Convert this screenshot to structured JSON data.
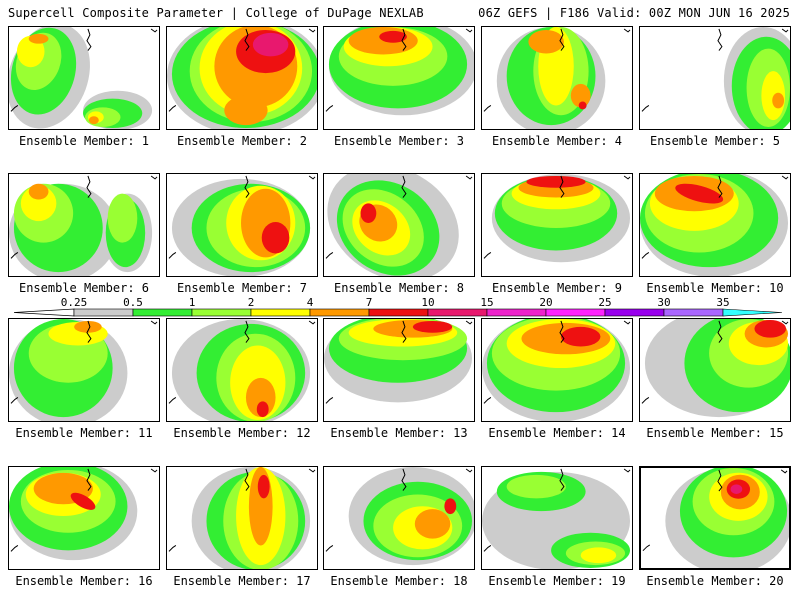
{
  "header": {
    "title": "Supercell Composite Parameter | College of DuPage NEXLAB",
    "model_info": "06Z GEFS | F186 Valid: 00Z MON JUN 16 2025"
  },
  "colorbar": {
    "thresholds": [
      "0.25",
      "0.5",
      "1",
      "2",
      "4",
      "7",
      "10",
      "15",
      "20",
      "25",
      "30",
      "35"
    ],
    "colors": [
      "#cccccc",
      "#33ee33",
      "#99ff33",
      "#ffff00",
      "#ff9900",
      "#ee1111",
      "#e8186e",
      "#ee22cc",
      "#ff22ff",
      "#9900ee",
      "#aa66ff",
      "#33ffff"
    ]
  },
  "panels": [
    {
      "label": "Ensemble Member: 1",
      "selected": false
    },
    {
      "label": "Ensemble Member: 2",
      "selected": false
    },
    {
      "label": "Ensemble Member: 3",
      "selected": false
    },
    {
      "label": "Ensemble Member: 4",
      "selected": false
    },
    {
      "label": "Ensemble Member: 5",
      "selected": false
    },
    {
      "label": "Ensemble Member: 6",
      "selected": false
    },
    {
      "label": "Ensemble Member: 7",
      "selected": false
    },
    {
      "label": "Ensemble Member: 8",
      "selected": false
    },
    {
      "label": "Ensemble Member: 9",
      "selected": false
    },
    {
      "label": "Ensemble Member: 10",
      "selected": false
    },
    {
      "label": "Ensemble Member: 11",
      "selected": false
    },
    {
      "label": "Ensemble Member: 12",
      "selected": false
    },
    {
      "label": "Ensemble Member: 13",
      "selected": false
    },
    {
      "label": "Ensemble Member: 14",
      "selected": false
    },
    {
      "label": "Ensemble Member: 15",
      "selected": false
    },
    {
      "label": "Ensemble Member: 16",
      "selected": false
    },
    {
      "label": "Ensemble Member: 17",
      "selected": false
    },
    {
      "label": "Ensemble Member: 18",
      "selected": false
    },
    {
      "label": "Ensemble Member: 19",
      "selected": false
    },
    {
      "label": "Ensemble Member: 20",
      "selected": true
    }
  ]
}
